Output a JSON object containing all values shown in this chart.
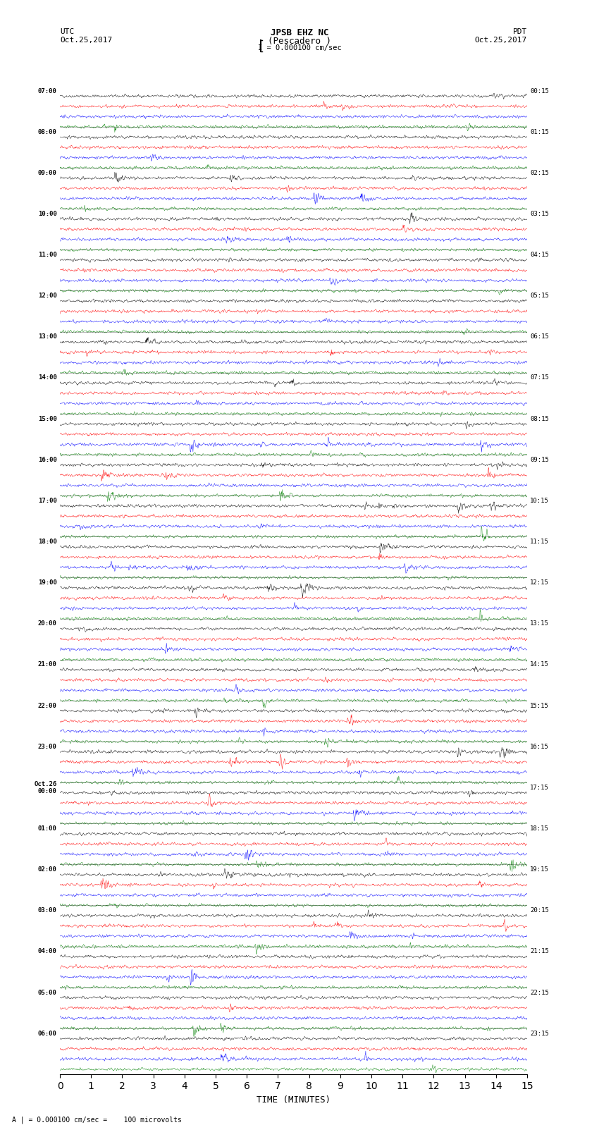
{
  "title_line1": "JPSB EHZ NC",
  "title_line2": "(Pescadero )",
  "scale_label": "I = 0.000100 cm/sec",
  "utc_label": "UTC\nOct.25,2017",
  "pdt_label": "PDT\nOct.25,2017",
  "bottom_label": "A | = 0.000100 cm/sec =    100 microvolts",
  "xlabel": "TIME (MINUTES)",
  "left_times_utc": [
    "07:00",
    "08:00",
    "09:00",
    "10:00",
    "11:00",
    "12:00",
    "13:00",
    "14:00",
    "15:00",
    "16:00",
    "17:00",
    "18:00",
    "19:00",
    "20:00",
    "21:00",
    "22:00",
    "23:00",
    "Oct.26\n00:00",
    "01:00",
    "02:00",
    "03:00",
    "04:00",
    "05:00",
    "06:00"
  ],
  "right_times_pdt": [
    "00:15",
    "01:15",
    "02:15",
    "03:15",
    "04:15",
    "05:15",
    "06:15",
    "07:15",
    "08:15",
    "09:15",
    "10:15",
    "11:15",
    "12:15",
    "13:15",
    "14:15",
    "15:15",
    "16:15",
    "17:15",
    "18:15",
    "19:15",
    "20:15",
    "21:15",
    "22:15",
    "23:15"
  ],
  "colors": [
    "black",
    "red",
    "blue",
    "green"
  ],
  "n_hours": 24,
  "traces_per_hour": 4,
  "minutes_per_trace": 15,
  "fig_width": 8.5,
  "fig_height": 16.13,
  "bg_color": "white",
  "plot_bg": "white",
  "amplitude_base": 0.015,
  "amplitude_event_scale": 8.0,
  "seed": 42
}
